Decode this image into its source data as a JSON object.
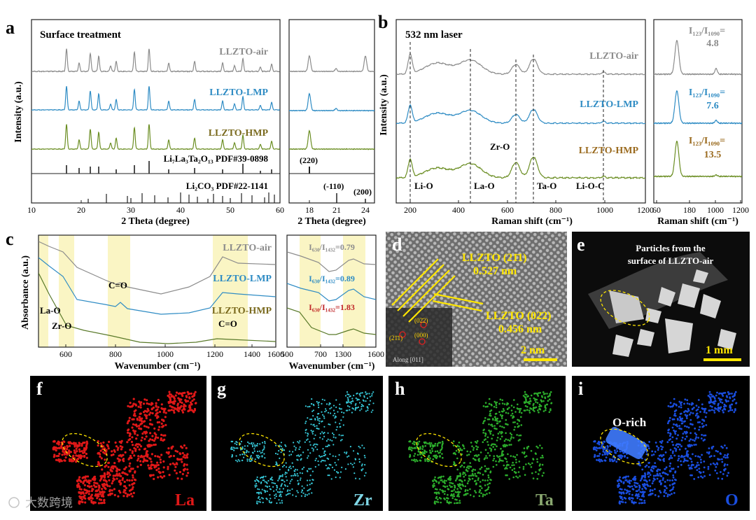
{
  "panels": {
    "a": {
      "label": "a",
      "title": "Surface treatment",
      "ylabel": "Intensity (a.u.)",
      "xlabel": "2 Theta (degree)",
      "xlabel_inset": "2 Theta (degree)",
      "series": [
        {
          "name": "LLZTO-air",
          "color": "#8c8c8c"
        },
        {
          "name": "LLZTO-LMP",
          "color": "#2f8cc4"
        },
        {
          "name": "LLZTO-HMP",
          "color": "#7a8c2a"
        }
      ],
      "ref1_text": "Li₇La₃Ta₂O₁₃ PDF#39-0898",
      "ref2_text": "Li₂CO₃ PDF#22-1141",
      "peak_220": "(220)",
      "peak_110": "(-110)",
      "peak_200": "(200)",
      "xticks": [
        "10",
        "20",
        "30",
        "40",
        "50",
        "60"
      ],
      "xticks_inset": [
        "18",
        "21",
        "24"
      ]
    },
    "b": {
      "label": "b",
      "title": "532 nm laser",
      "ylabel": "Intensity (a.u.)",
      "xlabel": "Raman shift (cm⁻¹)",
      "xlabel_inset": "Raman shift (cm⁻¹)",
      "annotations": [
        "Li-O",
        "La-O",
        "Zr-O",
        "Ta-O",
        "Li-O-C"
      ],
      "series": [
        "LLZTO-air",
        "LLZTO-LMP",
        "LLZTO-HMP"
      ],
      "ratios": [
        {
          "label": "I₁₂₃/I₁₀₉₀=",
          "value": "4.8",
          "color": "#8c8c8c"
        },
        {
          "label": "I₁₂₃/I₁₀₉₀=",
          "value": "7.6",
          "color": "#2f8cc4"
        },
        {
          "label": "I₁₂₃/I₁₀₉₀=",
          "value": "13.5",
          "color": "#9a6a1e"
        }
      ],
      "xticks": [
        "200",
        "400",
        "600",
        "800",
        "1000",
        "1200"
      ],
      "xticks_inset": [
        "60",
        "180",
        "1000",
        "1200"
      ]
    },
    "c": {
      "label": "c",
      "ylabel": "Absorbance (a.u.)",
      "xlabel": "Wavenumber (cm⁻¹)",
      "xlabel_inset": "Wavenumber (cm⁻¹)",
      "annotations": [
        "C=O",
        "La-O",
        "Zr-O",
        "C=O"
      ],
      "series": [
        "LLZTO-air",
        "LLZTO-LMP",
        "LLZTO-HMP"
      ],
      "ratios": [
        {
          "label": "I₆₃₀/I₁₄₃₂=0.79",
          "color": "#8c8c8c"
        },
        {
          "label": "I₆₃₀/I₁₄₃₂=0.89",
          "color": "#2f8cc4"
        },
        {
          "label": "I₆₃₀/I₁₄₃₂=1.83",
          "color": "#c0282a"
        }
      ],
      "xticks": [
        "600",
        "800",
        "1000",
        "1200",
        "1400",
        "1600"
      ],
      "xticks_inset": [
        "500",
        "700",
        "1300",
        "1600"
      ]
    },
    "d": {
      "label": "d",
      "plane1": "LLZTO (21̄1)",
      "d1": "0.527 nm",
      "plane2": "LLZTO (02̄2)",
      "d2": "0.456 nm",
      "scale": "2 nm",
      "fft_labels": [
        "(02̄2)",
        "(21̄1)",
        "(000)"
      ],
      "zone": "Along [011]"
    },
    "e": {
      "label": "e",
      "caption_line1": "Particles from the",
      "caption_line2": "surface of LLZTO-air",
      "scale": "1 mm"
    },
    "f": {
      "label": "f",
      "element": "La",
      "color": "#e01818"
    },
    "g": {
      "label": "g",
      "element": "Zr",
      "color": "#36c8d8"
    },
    "h": {
      "label": "h",
      "element": "Ta",
      "color": "#2cae2c"
    },
    "i": {
      "label": "i",
      "element": "O",
      "color": "#1a4ee0",
      "note": "O-rich"
    }
  },
  "watermark": "大数跨境"
}
